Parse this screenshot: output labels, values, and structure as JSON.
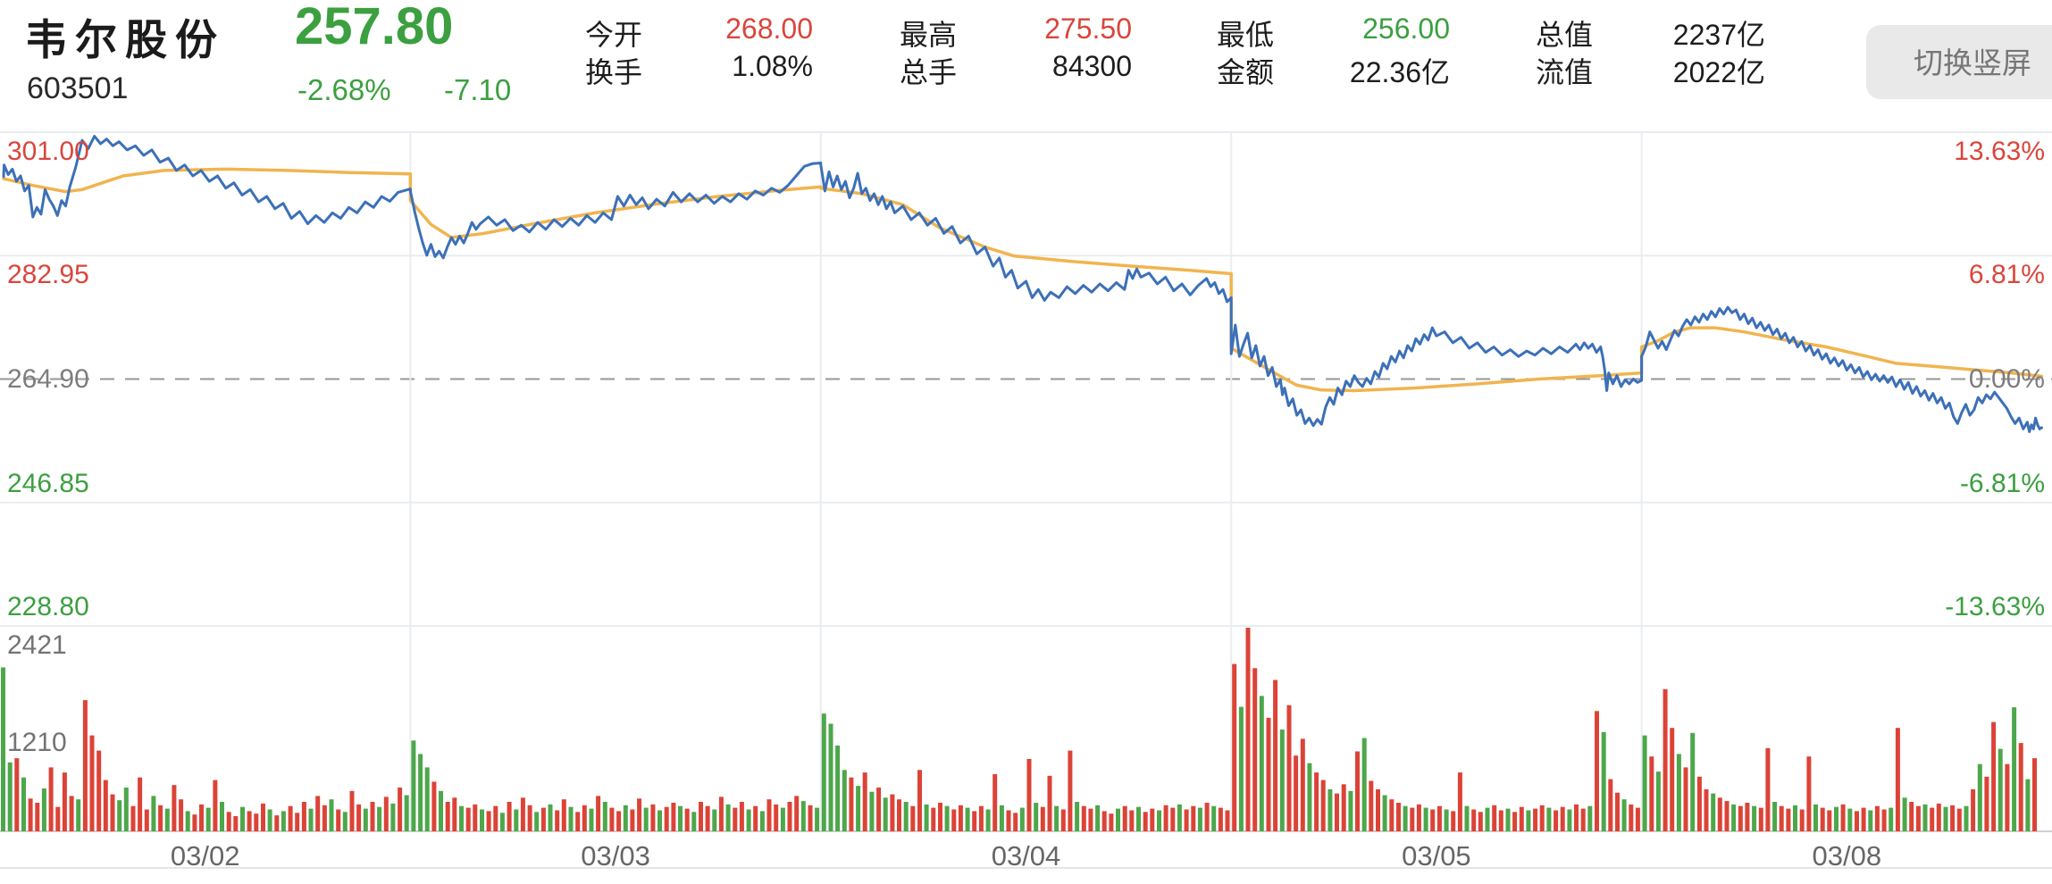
{
  "header": {
    "stock_name": "韦尔股份",
    "current_price": "257.80",
    "stock_code": "603501",
    "change_percent": "-2.68%",
    "change_value": "-7.10",
    "stats": [
      {
        "label": "今开",
        "value": "268.00",
        "color": "red"
      },
      {
        "label": "换手",
        "value": "1.08%",
        "color": "black"
      },
      {
        "label": "最高",
        "value": "275.50",
        "color": "red"
      },
      {
        "label": "总手",
        "value": "84300",
        "color": "black"
      },
      {
        "label": "最低",
        "value": "256.00",
        "color": "green"
      },
      {
        "label": "金额",
        "value": "22.36亿",
        "color": "black"
      },
      {
        "label": "总值",
        "value": "2237亿",
        "color": "black"
      },
      {
        "label": "流值",
        "value": "2022亿",
        "color": "black"
      }
    ],
    "rotate_button_label": "切换竖屏"
  },
  "colors": {
    "up_red": "#d9463c",
    "down_green": "#3c9f40",
    "bar_red": "#dc4337",
    "bar_green": "#4da74b",
    "price_line_blue": "#3c70b8",
    "ma_line_orange": "#f1b44f",
    "grid": "#e9edf0",
    "dashed_mid": "#979797",
    "neutral_gray": "#7d7d7d",
    "black_value": "#1d1d1d"
  },
  "chart_data": {
    "type": "line",
    "subtype": "multi-day-intraday-with-volume",
    "title": "韦尔股份 603501 五日分时图",
    "categories": [
      "03/02",
      "03/03",
      "03/04",
      "03/05",
      "03/08"
    ],
    "price_axis_labels": [
      {
        "text": "301.00",
        "color": "red"
      },
      {
        "text": "282.95",
        "color": "red"
      },
      {
        "text": "264.90",
        "color": "gray"
      },
      {
        "text": "246.85",
        "color": "green"
      },
      {
        "text": "228.80",
        "color": "green"
      }
    ],
    "percent_axis_labels": [
      {
        "text": "13.63%",
        "color": "red"
      },
      {
        "text": "6.81%",
        "color": "red"
      },
      {
        "text": "0.00%",
        "color": "gray"
      },
      {
        "text": "-6.81%",
        "color": "green"
      },
      {
        "text": "-13.63%",
        "color": "green"
      }
    ],
    "price_levels": [
      301.0,
      282.95,
      264.9,
      246.85,
      228.8
    ],
    "prev_close": 264.9,
    "volume_axis_labels": [
      "2421",
      "1210"
    ],
    "volume_max": 2421,
    "grid": true,
    "legend": false,
    "price_series_by_day": [
      [
        0,
        294.5,
        0.01,
        296.2,
        0.02,
        294.8,
        0.03,
        295.6,
        0.04,
        293.8,
        0.05,
        294.6,
        0.06,
        292.4,
        0.07,
        293.2,
        0.08,
        288.6,
        0.09,
        290.0,
        0.1,
        289.0,
        0.11,
        292.6,
        0.12,
        291.2,
        0.13,
        290.2,
        0.14,
        288.8,
        0.15,
        291.0,
        0.16,
        290.2,
        0.17,
        293.0,
        0.185,
        296.0,
        0.2,
        299.8,
        0.215,
        298.6,
        0.23,
        300.4,
        0.245,
        299.3,
        0.26,
        300.0,
        0.275,
        299.0,
        0.29,
        299.6,
        0.31,
        298.4,
        0.33,
        299.0,
        0.35,
        297.6,
        0.37,
        298.4,
        0.39,
        296.6,
        0.41,
        297.2,
        0.43,
        295.4,
        0.45,
        296.2,
        0.47,
        294.6,
        0.49,
        295.4,
        0.51,
        293.8,
        0.53,
        294.6,
        0.55,
        292.8,
        0.57,
        293.6,
        0.59,
        291.8,
        0.61,
        292.6,
        0.63,
        290.8,
        0.65,
        291.6,
        0.67,
        289.8,
        0.69,
        290.6,
        0.71,
        288.4,
        0.73,
        289.4,
        0.75,
        287.6,
        0.77,
        288.8,
        0.79,
        287.8,
        0.81,
        289.2,
        0.83,
        288.4,
        0.85,
        290.0,
        0.87,
        289.2,
        0.89,
        290.8,
        0.91,
        290.0,
        0.93,
        291.6,
        0.95,
        290.9,
        0.97,
        292.2,
        1,
        292.7
      ],
      [
        0,
        292.4,
        0.01,
        289.5,
        0.02,
        287.0,
        0.03,
        284.8,
        0.04,
        283.0,
        0.05,
        284.6,
        0.06,
        282.8,
        0.07,
        283.6,
        0.08,
        282.6,
        0.09,
        284.2,
        0.1,
        285.6,
        0.11,
        284.6,
        0.12,
        285.8,
        0.13,
        284.8,
        0.14,
        286.2,
        0.15,
        287.8,
        0.16,
        286.8,
        0.17,
        287.6,
        0.19,
        288.6,
        0.21,
        287.4,
        0.23,
        288.2,
        0.25,
        286.6,
        0.27,
        287.4,
        0.29,
        286.4,
        0.31,
        287.8,
        0.33,
        286.8,
        0.35,
        288.2,
        0.37,
        287.2,
        0.39,
        288.4,
        0.41,
        287.4,
        0.43,
        288.8,
        0.45,
        287.8,
        0.47,
        289.2,
        0.49,
        288.2,
        0.505,
        291.6,
        0.52,
        290.2,
        0.535,
        291.8,
        0.55,
        290.4,
        0.565,
        291.4,
        0.58,
        289.8,
        0.6,
        291.2,
        0.62,
        290.2,
        0.64,
        292.2,
        0.66,
        290.8,
        0.68,
        292.0,
        0.7,
        290.8,
        0.72,
        291.8,
        0.74,
        290.6,
        0.76,
        291.6,
        0.78,
        290.8,
        0.8,
        292.0,
        0.82,
        291.2,
        0.84,
        292.4,
        0.86,
        291.8,
        0.88,
        292.8,
        0.9,
        292.2,
        0.92,
        293.2,
        0.94,
        294.6,
        0.96,
        296.0,
        0.98,
        296.4,
        1,
        296.5
      ],
      [
        0,
        296.2,
        0.01,
        292.4,
        0.02,
        295.2,
        0.03,
        293.0,
        0.04,
        294.6,
        0.05,
        292.6,
        0.06,
        293.8,
        0.07,
        291.4,
        0.08,
        292.8,
        0.09,
        295.0,
        0.1,
        292.0,
        0.11,
        292.8,
        0.12,
        291.0,
        0.13,
        292.0,
        0.14,
        290.4,
        0.15,
        291.6,
        0.16,
        289.8,
        0.17,
        290.8,
        0.18,
        289.2,
        0.2,
        290.2,
        0.22,
        288.2,
        0.24,
        289.2,
        0.26,
        287.4,
        0.28,
        288.4,
        0.3,
        286.2,
        0.32,
        287.2,
        0.34,
        284.8,
        0.36,
        285.8,
        0.38,
        283.2,
        0.4,
        284.2,
        0.42,
        281.4,
        0.435,
        282.6,
        0.45,
        279.8,
        0.465,
        280.8,
        0.48,
        278.2,
        0.5,
        279.2,
        0.515,
        276.8,
        0.53,
        278.0,
        0.545,
        276.4,
        0.56,
        277.6,
        0.58,
        276.8,
        0.6,
        278.4,
        0.62,
        277.4,
        0.64,
        278.6,
        0.66,
        277.6,
        0.68,
        278.8,
        0.7,
        277.8,
        0.72,
        279.0,
        0.74,
        278.0,
        0.75,
        280.8,
        0.76,
        279.6,
        0.77,
        281.0,
        0.78,
        279.8,
        0.8,
        280.4,
        0.82,
        278.8,
        0.84,
        279.8,
        0.86,
        277.8,
        0.88,
        278.8,
        0.9,
        277.2,
        0.92,
        278.6,
        0.94,
        279.6,
        0.95,
        278.4,
        0.96,
        279.0,
        0.97,
        277.4,
        0.98,
        278.0,
        0.99,
        276.2,
        1,
        276.8
      ],
      [
        0,
        268.6,
        0.01,
        272.8,
        0.02,
        268.2,
        0.03,
        270.0,
        0.04,
        271.6,
        0.05,
        268.0,
        0.06,
        269.8,
        0.07,
        266.8,
        0.08,
        268.2,
        0.09,
        265.4,
        0.1,
        266.6,
        0.11,
        263.8,
        0.12,
        264.8,
        0.125,
        262.6,
        0.13,
        263.6,
        0.14,
        261.0,
        0.15,
        262.0,
        0.16,
        259.6,
        0.17,
        260.4,
        0.18,
        258.4,
        0.19,
        259.2,
        0.2,
        258.1,
        0.21,
        259.0,
        0.22,
        258.3,
        0.23,
        260.8,
        0.24,
        262.2,
        0.25,
        261.2,
        0.26,
        263.6,
        0.27,
        262.6,
        0.28,
        264.6,
        0.29,
        263.8,
        0.3,
        265.4,
        0.31,
        264.4,
        0.32,
        263.8,
        0.33,
        265.0,
        0.34,
        264.2,
        0.35,
        266.0,
        0.36,
        265.2,
        0.37,
        267.2,
        0.38,
        266.4,
        0.39,
        268.2,
        0.4,
        267.4,
        0.41,
        269.0,
        0.42,
        268.0,
        0.43,
        269.8,
        0.44,
        269.0,
        0.45,
        270.8,
        0.46,
        270.0,
        0.47,
        271.4,
        0.48,
        270.6,
        0.49,
        272.4,
        0.5,
        271.2,
        0.52,
        271.8,
        0.54,
        270.2,
        0.56,
        271.0,
        0.58,
        269.4,
        0.6,
        270.2,
        0.62,
        268.8,
        0.64,
        269.6,
        0.66,
        268.4,
        0.68,
        269.2,
        0.7,
        268.2,
        0.72,
        269.0,
        0.74,
        268.4,
        0.76,
        269.4,
        0.78,
        268.6,
        0.8,
        269.6,
        0.82,
        268.8,
        0.84,
        270.0,
        0.85,
        269.2,
        0.86,
        270.2,
        0.87,
        269.4,
        0.88,
        270.0,
        0.89,
        268.8,
        0.9,
        269.6,
        0.905,
        268.2,
        0.91,
        266.2,
        0.915,
        263.2,
        0.92,
        265.8,
        0.93,
        264.2,
        0.94,
        265.4,
        0.95,
        263.8,
        0.96,
        264.8,
        0.97,
        264.2,
        0.98,
        264.9,
        0.99,
        264.4,
        1,
        264.7
      ],
      [
        0,
        268.2,
        0.01,
        269.6,
        0.02,
        271.8,
        0.03,
        270.6,
        0.04,
        269.4,
        0.05,
        270.4,
        0.06,
        269.2,
        0.07,
        270.6,
        0.08,
        272.0,
        0.09,
        271.2,
        0.1,
        272.6,
        0.11,
        273.6,
        0.12,
        272.8,
        0.13,
        274.0,
        0.14,
        273.2,
        0.15,
        274.4,
        0.16,
        273.6,
        0.17,
        274.8,
        0.18,
        274.0,
        0.19,
        275.2,
        0.2,
        274.4,
        0.21,
        275.4,
        0.22,
        274.6,
        0.23,
        275.0,
        0.24,
        273.6,
        0.25,
        274.4,
        0.26,
        273.0,
        0.27,
        273.8,
        0.28,
        272.4,
        0.29,
        273.2,
        0.3,
        272.0,
        0.31,
        272.8,
        0.32,
        271.4,
        0.33,
        272.2,
        0.34,
        270.8,
        0.35,
        271.6,
        0.36,
        270.2,
        0.37,
        271.0,
        0.38,
        269.6,
        0.39,
        270.4,
        0.4,
        269.0,
        0.41,
        269.8,
        0.42,
        268.4,
        0.43,
        269.2,
        0.44,
        267.8,
        0.45,
        268.6,
        0.46,
        267.2,
        0.47,
        268.0,
        0.48,
        266.8,
        0.49,
        267.6,
        0.5,
        266.2,
        0.51,
        267.0,
        0.52,
        265.8,
        0.53,
        266.6,
        0.54,
        265.2,
        0.55,
        266.0,
        0.56,
        264.8,
        0.57,
        265.6,
        0.58,
        264.6,
        0.59,
        265.4,
        0.6,
        264.4,
        0.61,
        265.2,
        0.62,
        263.8,
        0.63,
        264.8,
        0.64,
        263.4,
        0.65,
        264.4,
        0.66,
        262.8,
        0.67,
        263.8,
        0.68,
        262.4,
        0.69,
        263.2,
        0.7,
        261.8,
        0.71,
        262.8,
        0.72,
        261.4,
        0.73,
        262.2,
        0.74,
        260.6,
        0.75,
        261.4,
        0.76,
        259.4,
        0.77,
        258.4,
        0.78,
        260.0,
        0.79,
        261.2,
        0.8,
        259.6,
        0.81,
        260.4,
        0.82,
        262.2,
        0.83,
        261.4,
        0.84,
        262.6,
        0.85,
        262.0,
        0.86,
        263.0,
        0.87,
        262.2,
        0.88,
        261.4,
        0.89,
        260.6,
        0.9,
        259.4,
        0.91,
        258.4,
        0.92,
        259.2,
        0.93,
        257.6,
        0.94,
        258.6,
        0.945,
        257.2,
        0.95,
        258.2,
        0.955,
        257.6,
        0.96,
        259.2,
        0.965,
        258.2,
        0.97,
        257.6,
        0.975,
        257.8
      ]
    ],
    "ma_series_by_day": [
      [
        0,
        294.2,
        0.08,
        293.2,
        0.16,
        292.3,
        0.2,
        292.6,
        0.3,
        294.6,
        0.4,
        295.4,
        0.55,
        295.6,
        0.7,
        295.4,
        0.85,
        295.1,
        1,
        294.9
      ],
      [
        0,
        291.0,
        0.05,
        287.5,
        0.1,
        285.6,
        0.18,
        286.2,
        0.3,
        287.6,
        0.45,
        289.2,
        0.6,
        290.5,
        0.75,
        291.6,
        0.9,
        292.5,
        1,
        293.0
      ],
      [
        0,
        292.8,
        0.1,
        292.0,
        0.2,
        290.4,
        0.29,
        287.0,
        0.4,
        284.2,
        0.47,
        282.9,
        0.61,
        282.1,
        0.76,
        281.4,
        0.9,
        280.8,
        1,
        280.3
      ],
      [
        0,
        269.4,
        0.07,
        267.0,
        0.12,
        265.3,
        0.16,
        264.0,
        0.22,
        263.3,
        0.3,
        263.2,
        0.45,
        263.6,
        0.6,
        264.2,
        0.75,
        264.9,
        0.9,
        265.4,
        1,
        265.8
      ],
      [
        0,
        269.6,
        0.04,
        270.5,
        0.08,
        271.8,
        0.12,
        272.4,
        0.18,
        272.4,
        0.25,
        271.8,
        0.35,
        270.6,
        0.45,
        269.6,
        0.55,
        268.2,
        0.62,
        267.2,
        0.7,
        266.8,
        0.8,
        266.3,
        0.9,
        265.8,
        0.975,
        265.3
      ]
    ],
    "volume_note": "signed values: positive = red(up) bar, negative = green(down) bar, unit matches 2421 axis max",
    "volume_by_day": [
      [
        -1950,
        -820,
        870,
        -640,
        390,
        340,
        -510,
        760,
        290,
        700,
        420,
        -380,
        1560,
        1140,
        960,
        610,
        440,
        -370,
        -520,
        300,
        640,
        260,
        -420,
        310,
        -270,
        550,
        380,
        -240,
        200,
        320,
        -280,
        610,
        -350,
        230,
        180,
        -290,
        240,
        210,
        330,
        -260,
        190,
        -240,
        300,
        220,
        350,
        -270,
        420,
        310,
        -380,
        260,
        -230,
        480,
        320,
        -270,
        350,
        -290,
        410,
        -330,
        520,
        -430
      ],
      [
        -1080,
        -920,
        -760,
        590,
        -480,
        350,
        400,
        -300,
        280,
        320,
        -260,
        240,
        300,
        -220,
        350,
        -260,
        400,
        310,
        -230,
        280,
        -320,
        250,
        380,
        -290,
        230,
        310,
        -270,
        420,
        -350,
        280,
        240,
        -310,
        260,
        390,
        -280,
        320,
        -250,
        290,
        340,
        -300,
        270,
        -230,
        350,
        300,
        -260,
        410,
        -320,
        280,
        350,
        -260,
        300,
        -240,
        380,
        320,
        -280,
        350,
        420,
        -360,
        310,
        -280
      ],
      [
        -1400,
        -1280,
        -1020,
        -730,
        640,
        -540,
        700,
        -470,
        520,
        -400,
        440,
        380,
        -350,
        300,
        730,
        -320,
        280,
        340,
        -300,
        260,
        310,
        -280,
        240,
        300,
        -260,
        680,
        -310,
        250,
        220,
        -280,
        860,
        -340,
        290,
        660,
        -300,
        260,
        960,
        -350,
        300,
        270,
        -310,
        240,
        210,
        -270,
        300,
        250,
        -290,
        230,
        270,
        -250,
        310,
        280,
        -320,
        260,
        300,
        -280,
        340,
        -300,
        280,
        250
      ],
      [
        1990,
        -1480,
        2421,
        1940,
        -1610,
        1350,
        1800,
        -1210,
        1500,
        900,
        1100,
        -810,
        700,
        610,
        -500,
        450,
        560,
        -480,
        950,
        -1110,
        600,
        500,
        -430,
        380,
        340,
        -300,
        280,
        320,
        -280,
        260,
        300,
        -260,
        240,
        700,
        -300,
        260,
        230,
        -280,
        310,
        250,
        -270,
        230,
        290,
        -250,
        270,
        310,
        -280,
        250,
        290,
        -260,
        320,
        270,
        -300,
        1430,
        -1180,
        620,
        460,
        -380,
        320,
        280
      ],
      [
        -1140,
        890,
        -710,
        1690,
        1230,
        -920,
        760,
        -1170,
        650,
        500,
        -450,
        400,
        360,
        -320,
        300,
        340,
        -300,
        280,
        990,
        -350,
        300,
        270,
        -310,
        260,
        890,
        -320,
        280,
        250,
        -290,
        320,
        -270,
        240,
        280,
        -250,
        300,
        260,
        -280,
        1230,
        -400,
        350,
        300,
        -320,
        280,
        330,
        -290,
        310,
        270,
        -300,
        500,
        -800,
        650,
        1300,
        -980,
        800,
        -1475,
        1050,
        -620,
        870
      ]
    ]
  }
}
